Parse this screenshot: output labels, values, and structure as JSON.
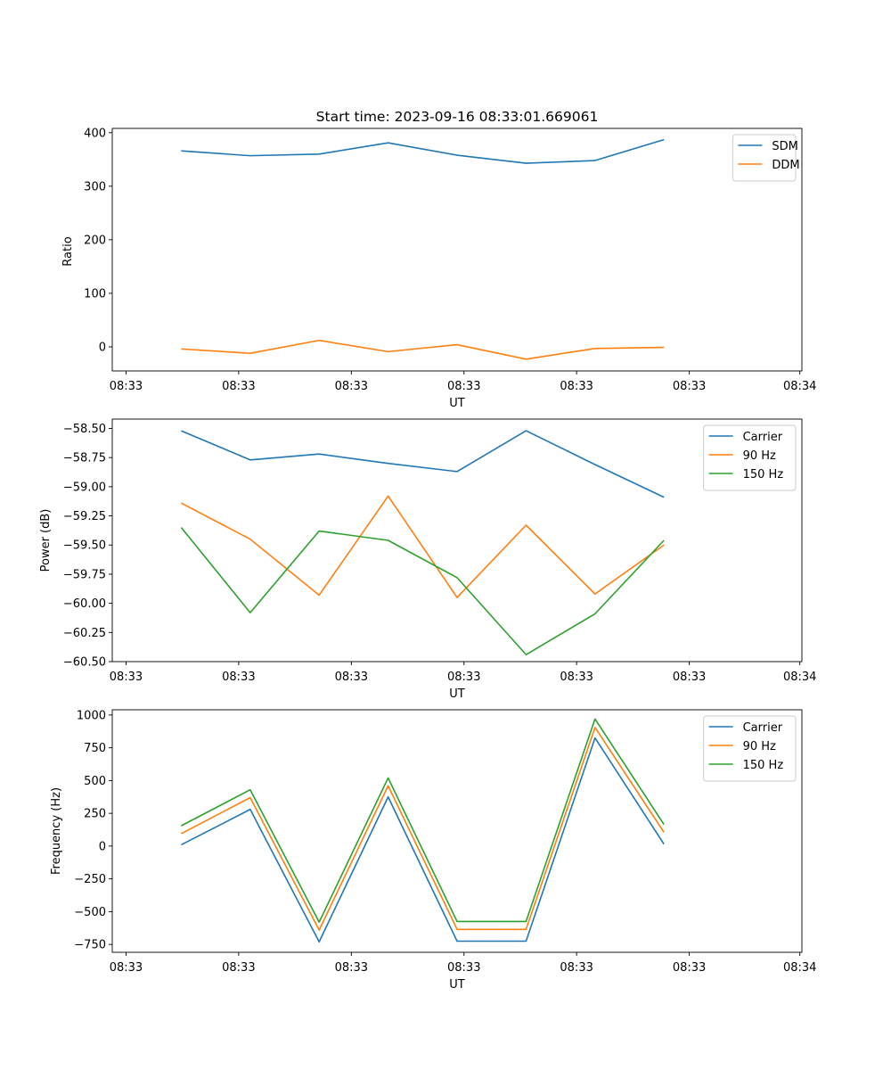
{
  "chart_data": [
    {
      "type": "line",
      "title": "Start time: 2023-09-16 08:33:01.669061",
      "xlabel": "UT",
      "ylabel": "Ratio",
      "x_tick_labels": [
        "08:33",
        "08:33",
        "08:33",
        "08:33",
        "08:33",
        "08:33",
        "08:34"
      ],
      "y_ticks": [
        0,
        100,
        200,
        300,
        400
      ],
      "y_tick_labels": [
        "0",
        "100",
        "200",
        "300",
        "400"
      ],
      "ylim": [
        -45,
        408
      ],
      "xlim": [
        0,
        1
      ],
      "x": [
        0.1,
        0.2,
        0.3,
        0.4,
        0.5,
        0.6,
        0.7,
        0.8
      ],
      "legend_position": "upper-right",
      "series": [
        {
          "name": "SDM",
          "color": "#1f77b4",
          "values": [
            366,
            357,
            360,
            381,
            358,
            343,
            348,
            387
          ]
        },
        {
          "name": "DDM",
          "color": "#ff7f0e",
          "values": [
            -4,
            -12,
            12,
            -9,
            4,
            -23,
            -3,
            -1
          ]
        }
      ]
    },
    {
      "type": "line",
      "title": "",
      "xlabel": "UT",
      "ylabel": "Power (dB)",
      "x_tick_labels": [
        "08:33",
        "08:33",
        "08:33",
        "08:33",
        "08:33",
        "08:33",
        "08:34"
      ],
      "y_ticks": [
        -58.5,
        -58.75,
        -59.0,
        -59.25,
        -59.5,
        -59.75,
        -60.0,
        -60.25,
        -60.5
      ],
      "y_tick_labels": [
        "−58.50",
        "−58.75",
        "−59.00",
        "−59.25",
        "−59.50",
        "−59.75",
        "−60.00",
        "−60.25",
        "−60.50"
      ],
      "ylim": [
        -60.5,
        -58.42
      ],
      "xlim": [
        0,
        1
      ],
      "x": [
        0.1,
        0.2,
        0.3,
        0.4,
        0.5,
        0.6,
        0.7,
        0.8
      ],
      "legend_position": "upper-right",
      "series": [
        {
          "name": "Carrier",
          "color": "#1f77b4",
          "values": [
            -58.52,
            -58.77,
            -58.72,
            -58.8,
            -58.87,
            -58.52,
            -58.81,
            -59.09
          ]
        },
        {
          "name": "90 Hz",
          "color": "#ff7f0e",
          "values": [
            -59.14,
            -59.45,
            -59.93,
            -59.08,
            -59.95,
            -59.33,
            -59.92,
            -59.5
          ]
        },
        {
          "name": "150 Hz",
          "color": "#2ca02c",
          "values": [
            -59.35,
            -60.08,
            -59.38,
            -59.46,
            -59.78,
            -60.44,
            -60.09,
            -59.46
          ]
        }
      ]
    },
    {
      "type": "line",
      "title": "",
      "xlabel": "UT",
      "ylabel": "Frequency (Hz)",
      "x_tick_labels": [
        "08:33",
        "08:33",
        "08:33",
        "08:33",
        "08:33",
        "08:33",
        "08:34"
      ],
      "y_ticks": [
        1000,
        750,
        500,
        250,
        0,
        -250,
        -500,
        -750
      ],
      "y_tick_labels": [
        "1000",
        "750",
        "500",
        "250",
        "0",
        "−250",
        "−500",
        "−750"
      ],
      "ylim": [
        -810,
        1040
      ],
      "xlim": [
        0,
        1
      ],
      "x": [
        0.1,
        0.2,
        0.3,
        0.4,
        0.5,
        0.6,
        0.7,
        0.8
      ],
      "legend_position": "upper-right",
      "series": [
        {
          "name": "Carrier",
          "color": "#1f77b4",
          "values": [
            10,
            280,
            -730,
            375,
            -725,
            -725,
            825,
            15
          ]
        },
        {
          "name": "90 Hz",
          "color": "#ff7f0e",
          "values": [
            95,
            370,
            -640,
            460,
            -635,
            -635,
            905,
            105
          ]
        },
        {
          "name": "150 Hz",
          "color": "#2ca02c",
          "values": [
            155,
            430,
            -580,
            520,
            -575,
            -575,
            970,
            165
          ]
        }
      ]
    }
  ]
}
